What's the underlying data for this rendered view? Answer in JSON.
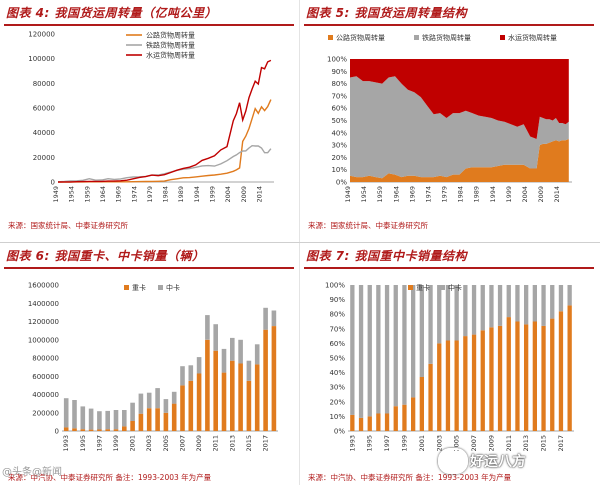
{
  "colors": {
    "orange": "#e07b1e",
    "gray": "#a6a6a6",
    "red": "#c00000",
    "title": "#b01a1a"
  },
  "panels": [
    {
      "title": "图表 4:   我国货运周转量（亿吨公里）",
      "source": "来源：国家统计局、中泰证券研究所"
    },
    {
      "title": "图表 5:   我国货运周转量结构",
      "source": "来源：国家统计局、中泰证券研究所"
    },
    {
      "title": "图表 6:   我国重卡、中卡销量（辆）",
      "source": "来源：中汽协、中泰证券研究所  备注：1993-2003 年为产量"
    },
    {
      "title": "图表 7:   我国重中卡销量结构",
      "source": "来源：中汽协、中泰证券研究所  备注：1993-2003 年为产量"
    }
  ],
  "watermarks": {
    "left": "@头条@新闻",
    "right": "好运八方"
  },
  "chart_data": [
    {
      "type": "line",
      "title": "我国货运周转量（亿吨公里）",
      "x": [
        1949,
        1951,
        1953,
        1955,
        1957,
        1959,
        1961,
        1963,
        1965,
        1967,
        1969,
        1971,
        1973,
        1975,
        1977,
        1979,
        1981,
        1983,
        1985,
        1987,
        1989,
        1991,
        1993,
        1995,
        1997,
        1999,
        2001,
        2003,
        2005,
        2006,
        2007,
        2008,
        2009,
        2010,
        2011,
        2012,
        2013,
        2014,
        2015,
        2016,
        2017
      ],
      "xticks": [
        "1949",
        "1954",
        "1959",
        "1964",
        "1969",
        "1974",
        "1979",
        "1984",
        "1989",
        "1994",
        "1999",
        "2004",
        "2009",
        "2014"
      ],
      "ylim": [
        0,
        120000
      ],
      "yticks": [
        "0",
        "20000",
        "40000",
        "60000",
        "80000",
        "100000",
        "120000"
      ],
      "legend_position": "top-center",
      "series": [
        {
          "name": "公路货物周转量",
          "color": "#e07b1e",
          "values": [
            10,
            20,
            40,
            60,
            80,
            200,
            150,
            130,
            150,
            160,
            180,
            200,
            260,
            330,
            400,
            450,
            560,
            690,
            1900,
            2600,
            3400,
            3600,
            4100,
            4700,
            5300,
            5700,
            6300,
            7100,
            8700,
            9800,
            11400,
            32900,
            37200,
            43400,
            51400,
            59500,
            55700,
            61000,
            57900,
            61100,
            66800
          ]
        },
        {
          "name": "铁路货物周转量",
          "color": "#a6a6a6",
          "values": [
            180,
            370,
            780,
            980,
            1350,
            2650,
            1460,
            1660,
            2700,
            2130,
            2530,
            3450,
            4080,
            4250,
            4570,
            5600,
            5700,
            6650,
            8120,
            9470,
            10400,
            10970,
            11950,
            13050,
            13300,
            12900,
            14700,
            17250,
            20700,
            21950,
            23800,
            25100,
            25200,
            27600,
            29450,
            29190,
            29170,
            27530,
            23750,
            23790,
            26960
          ]
        },
        {
          "name": "水运货物周转量",
          "color": "#c00000",
          "values": [
            30,
            60,
            120,
            220,
            300,
            500,
            500,
            520,
            700,
            760,
            950,
            1500,
            2600,
            3700,
            4400,
            5600,
            5100,
            5900,
            7700,
            9600,
            11000,
            12000,
            13900,
            17550,
            19230,
            21260,
            25990,
            28720,
            49670,
            55490,
            64290,
            50260,
            57560,
            68430,
            75420,
            81710,
            79440,
            92770,
            91770,
            97340,
            98610
          ]
        }
      ]
    },
    {
      "type": "area",
      "title": "我国货运周转量结构",
      "x": [
        1949,
        1951,
        1953,
        1955,
        1957,
        1959,
        1961,
        1963,
        1965,
        1967,
        1969,
        1971,
        1973,
        1975,
        1977,
        1979,
        1981,
        1983,
        1985,
        1987,
        1989,
        1991,
        1993,
        1995,
        1997,
        1999,
        2001,
        2003,
        2005,
        2006,
        2007,
        2008,
        2009,
        2010,
        2011,
        2012,
        2013,
        2014,
        2015,
        2016,
        2017
      ],
      "xticks": [
        "1949",
        "1954",
        "1959",
        "1964",
        "1969",
        "1974",
        "1979",
        "1984",
        "1989",
        "1994",
        "1999",
        "2004",
        "2009",
        "2014"
      ],
      "ylim": [
        0,
        100
      ],
      "yticks": [
        "0%",
        "10%",
        "20%",
        "30%",
        "40%",
        "50%",
        "60%",
        "70%",
        "80%",
        "90%",
        "100%"
      ],
      "legend_position": "top",
      "stacked_percent": true,
      "series": [
        {
          "name": "公路货物周转量",
          "color": "#e07b1e",
          "values": [
            5,
            4,
            4,
            5,
            4,
            3,
            7,
            6,
            4,
            5,
            5,
            4,
            4,
            4,
            5,
            4,
            6,
            6,
            11,
            12,
            12,
            12,
            12,
            13,
            14,
            14,
            14,
            14,
            11,
            11,
            11,
            30,
            31,
            31,
            32,
            33,
            34,
            33,
            34,
            34,
            35
          ]
        },
        {
          "name": "铁路货物周转量",
          "color": "#a6a6a6",
          "values": [
            80,
            82,
            78,
            77,
            77,
            77,
            78,
            80,
            76,
            70,
            68,
            65,
            58,
            51,
            51,
            48,
            50,
            50,
            47,
            44,
            42,
            41,
            40,
            37,
            35,
            33,
            31,
            33,
            26,
            25,
            24,
            23,
            21,
            20,
            19,
            17,
            18,
            15,
            14,
            13,
            14
          ]
        },
        {
          "name": "水运货物周转量",
          "color": "#c00000",
          "values": [
            15,
            14,
            18,
            18,
            19,
            20,
            15,
            14,
            20,
            25,
            27,
            31,
            38,
            45,
            44,
            48,
            44,
            44,
            42,
            44,
            46,
            47,
            48,
            50,
            51,
            53,
            55,
            53,
            63,
            64,
            65,
            47,
            48,
            49,
            49,
            50,
            48,
            52,
            52,
            53,
            51
          ]
        }
      ]
    },
    {
      "type": "bar",
      "title": "我国重卡、中卡销量（辆）",
      "stacked": true,
      "categories": [
        "1993",
        "1994",
        "1995",
        "1996",
        "1997",
        "1998",
        "1999",
        "2000",
        "2001",
        "2002",
        "2003",
        "2004",
        "2005",
        "2006",
        "2007",
        "2008",
        "2009",
        "2010",
        "2011",
        "2012",
        "2013",
        "2014",
        "2015",
        "2016",
        "2017",
        "2018"
      ],
      "xticks": [
        "1993",
        "1995",
        "1997",
        "1999",
        "2001",
        "2003",
        "2005",
        "2007",
        "2009",
        "2011",
        "2013",
        "2015",
        "2017"
      ],
      "ylim": [
        0,
        1600000
      ],
      "yticks": [
        "0",
        "200000",
        "400000",
        "600000",
        "800000",
        "1000000",
        "1200000",
        "1400000",
        "1600000"
      ],
      "legend_position": "top-left",
      "series": [
        {
          "name": "重卡",
          "color": "#e07b1e",
          "values": [
            40000,
            30000,
            20000,
            15000,
            17000,
            20000,
            20000,
            50000,
            110000,
            190000,
            250000,
            250000,
            200000,
            300000,
            500000,
            550000,
            630000,
            1000000,
            880000,
            640000,
            770000,
            740000,
            550000,
            730000,
            1110000,
            1150000
          ]
        },
        {
          "name": "中卡",
          "color": "#a6a6a6",
          "values": [
            320000,
            310000,
            250000,
            230000,
            200000,
            200000,
            210000,
            180000,
            200000,
            220000,
            170000,
            220000,
            150000,
            130000,
            210000,
            170000,
            180000,
            270000,
            290000,
            260000,
            250000,
            260000,
            220000,
            220000,
            240000,
            170000
          ]
        }
      ]
    },
    {
      "type": "bar",
      "title": "我国重中卡销量结构",
      "stacked_percent": true,
      "categories": [
        "1993",
        "1994",
        "1995",
        "1996",
        "1997",
        "1998",
        "1999",
        "2000",
        "2001",
        "2002",
        "2003",
        "2004",
        "2005",
        "2006",
        "2007",
        "2008",
        "2009",
        "2010",
        "2011",
        "2012",
        "2013",
        "2014",
        "2015",
        "2016",
        "2017",
        "2018"
      ],
      "xticks": [
        "1993",
        "1995",
        "1997",
        "1999",
        "2001",
        "2003",
        "2005",
        "2007",
        "2009",
        "2011",
        "2013",
        "2015",
        "2017"
      ],
      "ylim": [
        0,
        100
      ],
      "yticks": [
        "0%",
        "10%",
        "20%",
        "30%",
        "40%",
        "50%",
        "60%",
        "70%",
        "80%",
        "90%",
        "100%"
      ],
      "legend_position": "top-left",
      "series": [
        {
          "name": "重卡",
          "color": "#e07b1e",
          "values": [
            11,
            9,
            10,
            12,
            12,
            17,
            18,
            23,
            37,
            46,
            60,
            62,
            62,
            65,
            66,
            69,
            71,
            72,
            78,
            75,
            73,
            75,
            72,
            77,
            82,
            86
          ]
        },
        {
          "name": "中卡",
          "color": "#a6a6a6",
          "values": [
            89,
            91,
            90,
            88,
            88,
            83,
            82,
            77,
            63,
            54,
            40,
            38,
            38,
            35,
            34,
            31,
            29,
            28,
            22,
            25,
            27,
            25,
            28,
            23,
            18,
            14
          ]
        }
      ]
    }
  ]
}
